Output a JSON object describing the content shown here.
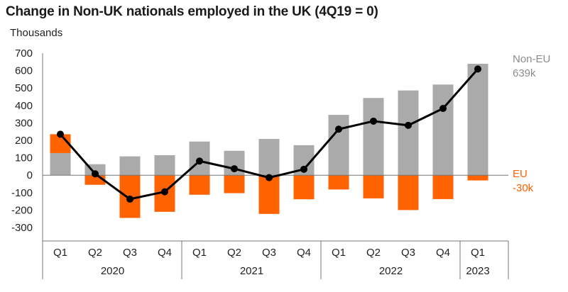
{
  "colors": {
    "non_eu": "#aaaaaa",
    "eu": "#ff6200",
    "total": "#000000",
    "axis": "#777777"
  },
  "chart_data": {
    "type": "bar",
    "title": "Change in Non-UK nationals employed in the UK (4Q19 = 0)",
    "ylabel": "Thousands",
    "xlabel": "",
    "ylim": [
      -300,
      700
    ],
    "yticks": [
      700,
      600,
      500,
      400,
      300,
      200,
      100,
      0,
      -100,
      -200,
      -300
    ],
    "categories": [
      "Q1",
      "Q2",
      "Q3",
      "Q4",
      "Q1",
      "Q2",
      "Q3",
      "Q4",
      "Q1",
      "Q2",
      "Q3",
      "Q4",
      "Q1"
    ],
    "years": [
      {
        "label": "2020",
        "start": 0,
        "end": 3
      },
      {
        "label": "2021",
        "start": 4,
        "end": 7
      },
      {
        "label": "2022",
        "start": 8,
        "end": 11
      },
      {
        "label": "2023",
        "start": 12,
        "end": 12
      }
    ],
    "series": [
      {
        "name": "Non-EU",
        "kind": "bar",
        "color": "#aaaaaa",
        "values": [
          127,
          63,
          108,
          115,
          193,
          140,
          208,
          172,
          346,
          443,
          486,
          520,
          639
        ]
      },
      {
        "name": "EU",
        "kind": "bar",
        "color": "#ff6200",
        "values": [
          108,
          -55,
          -245,
          -210,
          -112,
          -103,
          -222,
          -138,
          -82,
          -133,
          -200,
          -137,
          -30
        ]
      },
      {
        "name": "",
        "kind": "line",
        "color": "#000000",
        "values": [
          235,
          8,
          -137,
          -95,
          81,
          37,
          -14,
          34,
          264,
          310,
          286,
          383,
          609
        ]
      }
    ],
    "annotations": {
      "non_eu_label": "Non-EU",
      "non_eu_value": "639k",
      "eu_label": "EU",
      "eu_value": "-30k"
    },
    "grid": false,
    "legend": "right"
  }
}
